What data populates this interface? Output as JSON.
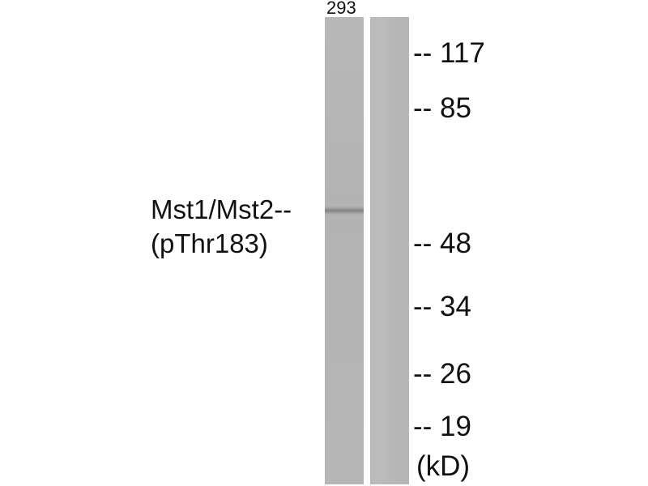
{
  "lanes": [
    {
      "label": "293",
      "band_kd": "Mst1/Mst2"
    },
    {
      "label": ""
    }
  ],
  "protein_label": {
    "line1": "Mst1/Mst2--",
    "line2": "(pThr183)"
  },
  "markers": [
    "-- 117",
    "-- 85",
    "-- 48",
    "-- 34",
    "-- 26",
    "-- 19"
  ],
  "unit": "(kD)",
  "colors": {
    "lane": "#b5b5b5",
    "band": "#737373",
    "text": "#111111"
  }
}
